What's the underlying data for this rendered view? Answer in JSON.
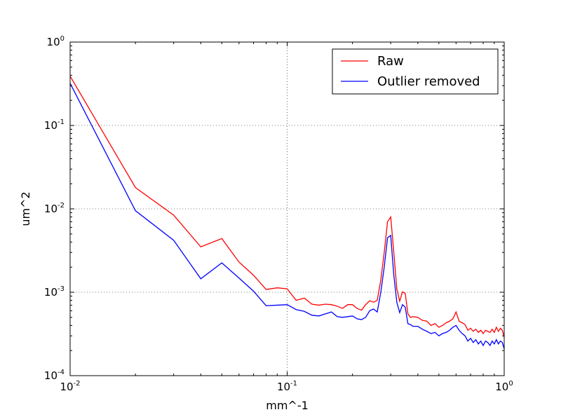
{
  "chart_data": {
    "type": "line",
    "title": "",
    "xlabel": "mm^-1",
    "ylabel": "um^2",
    "xscale": "log",
    "yscale": "log",
    "xlim": [
      0.01,
      1
    ],
    "ylim": [
      0.0001,
      1
    ],
    "grid": true,
    "legend_position": "top-right",
    "x_ticks": [
      {
        "value": 0.01,
        "base": "10",
        "exp": "-2"
      },
      {
        "value": 0.1,
        "base": "10",
        "exp": "-1"
      },
      {
        "value": 1,
        "base": "10",
        "exp": "0"
      }
    ],
    "y_ticks": [
      {
        "value": 0.0001,
        "base": "10",
        "exp": "-4"
      },
      {
        "value": 0.001,
        "base": "10",
        "exp": "-3"
      },
      {
        "value": 0.01,
        "base": "10",
        "exp": "-2"
      },
      {
        "value": 0.1,
        "base": "10",
        "exp": "-1"
      },
      {
        "value": 1,
        "base": "10",
        "exp": "0"
      }
    ],
    "series": [
      {
        "name": "Raw",
        "color": "#ff0000",
        "points": [
          [
            0.01,
            0.39
          ],
          [
            0.02,
            0.018
          ],
          [
            0.03,
            0.0084
          ],
          [
            0.04,
            0.0035
          ],
          [
            0.05,
            0.0044
          ],
          [
            0.06,
            0.0023
          ],
          [
            0.07,
            0.0016
          ],
          [
            0.08,
            0.00108
          ],
          [
            0.09,
            0.00113
          ],
          [
            0.1,
            0.0011
          ],
          [
            0.11,
            0.0008
          ],
          [
            0.12,
            0.00085
          ],
          [
            0.13,
            0.00072
          ],
          [
            0.14,
            0.0007
          ],
          [
            0.15,
            0.00072
          ],
          [
            0.16,
            0.00071
          ],
          [
            0.17,
            0.00068
          ],
          [
            0.18,
            0.00064
          ],
          [
            0.19,
            0.00071
          ],
          [
            0.2,
            0.00071
          ],
          [
            0.21,
            0.00064
          ],
          [
            0.22,
            0.00061
          ],
          [
            0.23,
            0.00071
          ],
          [
            0.24,
            0.00079
          ],
          [
            0.25,
            0.00076
          ],
          [
            0.26,
            0.0008
          ],
          [
            0.27,
            0.0014
          ],
          [
            0.28,
            0.003
          ],
          [
            0.29,
            0.007
          ],
          [
            0.3,
            0.008
          ],
          [
            0.31,
            0.003
          ],
          [
            0.32,
            0.0011
          ],
          [
            0.33,
            0.00078
          ],
          [
            0.34,
            0.00101
          ],
          [
            0.35,
            0.00097
          ],
          [
            0.36,
            0.00055
          ],
          [
            0.37,
            0.0005
          ],
          [
            0.38,
            0.00051
          ],
          [
            0.4,
            0.0005
          ],
          [
            0.42,
            0.00046
          ],
          [
            0.44,
            0.00045
          ],
          [
            0.46,
            0.0004
          ],
          [
            0.48,
            0.00042
          ],
          [
            0.5,
            0.00038
          ],
          [
            0.52,
            0.0004
          ],
          [
            0.54,
            0.00043
          ],
          [
            0.56,
            0.00045
          ],
          [
            0.58,
            0.00048
          ],
          [
            0.6,
            0.00058
          ],
          [
            0.62,
            0.00045
          ],
          [
            0.64,
            0.00043
          ],
          [
            0.66,
            0.00041
          ],
          [
            0.68,
            0.00035
          ],
          [
            0.7,
            0.00037
          ],
          [
            0.72,
            0.00034
          ],
          [
            0.74,
            0.00036
          ],
          [
            0.76,
            0.00033
          ],
          [
            0.78,
            0.00035
          ],
          [
            0.8,
            0.00032
          ],
          [
            0.82,
            0.00035
          ],
          [
            0.84,
            0.00034
          ],
          [
            0.86,
            0.00033
          ],
          [
            0.88,
            0.00036
          ],
          [
            0.9,
            0.00033
          ],
          [
            0.92,
            0.00038
          ],
          [
            0.94,
            0.00034
          ],
          [
            0.96,
            0.00037
          ],
          [
            0.98,
            0.00035
          ],
          [
            1.0,
            0.00029
          ]
        ]
      },
      {
        "name": "Outlier removed",
        "color": "#0000ff",
        "points": [
          [
            0.01,
            0.32
          ],
          [
            0.02,
            0.0095
          ],
          [
            0.03,
            0.0042
          ],
          [
            0.04,
            0.00145
          ],
          [
            0.05,
            0.00225
          ],
          [
            0.06,
            0.00148
          ],
          [
            0.07,
            0.00103
          ],
          [
            0.08,
            0.00069
          ],
          [
            0.09,
            0.0007
          ],
          [
            0.1,
            0.00071
          ],
          [
            0.11,
            0.00062
          ],
          [
            0.12,
            0.00059
          ],
          [
            0.13,
            0.00053
          ],
          [
            0.14,
            0.00052
          ],
          [
            0.15,
            0.00055
          ],
          [
            0.16,
            0.00058
          ],
          [
            0.17,
            0.00051
          ],
          [
            0.18,
            0.0005
          ],
          [
            0.19,
            0.00051
          ],
          [
            0.2,
            0.00052
          ],
          [
            0.21,
            0.00048
          ],
          [
            0.22,
            0.00047
          ],
          [
            0.23,
            0.0005
          ],
          [
            0.24,
            0.0006
          ],
          [
            0.25,
            0.00063
          ],
          [
            0.26,
            0.00058
          ],
          [
            0.27,
            0.001
          ],
          [
            0.28,
            0.002
          ],
          [
            0.29,
            0.0045
          ],
          [
            0.3,
            0.0048
          ],
          [
            0.31,
            0.0016
          ],
          [
            0.32,
            0.00076
          ],
          [
            0.33,
            0.00057
          ],
          [
            0.34,
            0.00071
          ],
          [
            0.35,
            0.00066
          ],
          [
            0.36,
            0.00042
          ],
          [
            0.37,
            0.00041
          ],
          [
            0.38,
            0.00039
          ],
          [
            0.4,
            0.00039
          ],
          [
            0.42,
            0.00036
          ],
          [
            0.44,
            0.00034
          ],
          [
            0.46,
            0.00032
          ],
          [
            0.48,
            0.00033
          ],
          [
            0.5,
            0.0003
          ],
          [
            0.52,
            0.00032
          ],
          [
            0.54,
            0.00033
          ],
          [
            0.56,
            0.00035
          ],
          [
            0.58,
            0.00038
          ],
          [
            0.6,
            0.0004
          ],
          [
            0.62,
            0.00035
          ],
          [
            0.64,
            0.00032
          ],
          [
            0.66,
            0.0003
          ],
          [
            0.68,
            0.00026
          ],
          [
            0.7,
            0.00028
          ],
          [
            0.72,
            0.00025
          ],
          [
            0.74,
            0.00027
          ],
          [
            0.76,
            0.00024
          ],
          [
            0.78,
            0.00026
          ],
          [
            0.8,
            0.00023
          ],
          [
            0.82,
            0.00026
          ],
          [
            0.84,
            0.00025
          ],
          [
            0.86,
            0.00023
          ],
          [
            0.88,
            0.00026
          ],
          [
            0.9,
            0.00024
          ],
          [
            0.92,
            0.00027
          ],
          [
            0.94,
            0.00024
          ],
          [
            0.96,
            0.00026
          ],
          [
            0.98,
            0.00025
          ],
          [
            1.0,
            0.00021
          ]
        ]
      }
    ]
  }
}
